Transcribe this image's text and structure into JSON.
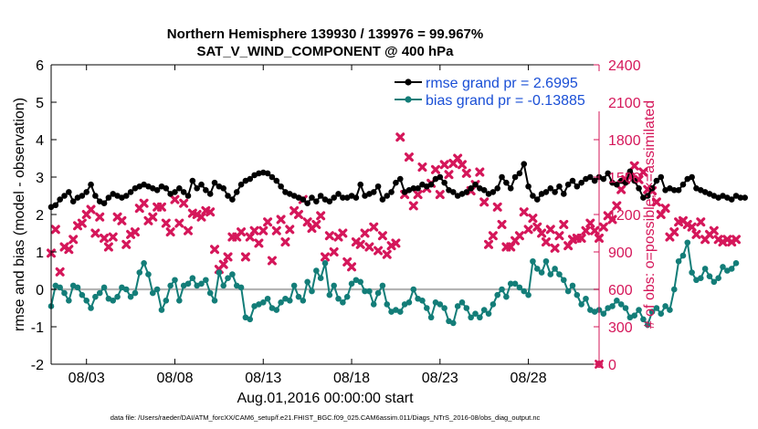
{
  "chart_data": {
    "type": "line",
    "title_line1": "Northern Hemisphere 139930 / 139976 = 99.967%",
    "title_line2": "SAT_V_WIND_COMPONENT @ 400 hPa",
    "xlabel": "Aug.01,2016 00:00:00 start",
    "ylabel_left": "rmse and bias (model - observation)",
    "ylabel_right": "# of obs: o=possible; ×=assimilated",
    "footnote": "data file: /Users/raeder/DAI/ATM_forcXX/CAM6_setup/f.e21.FHIST_BGC.f09_025.CAM6assim.011/Diags_NTrS_2016-08/obs_diag_output.nc",
    "x_start_day": 1.0,
    "x_step_days": 0.25,
    "xlim": [
      1.0,
      32.0
    ],
    "x_ticks": [
      3,
      8,
      13,
      18,
      23,
      28
    ],
    "x_tick_labels": [
      "08/03",
      "08/08",
      "08/13",
      "08/18",
      "08/23",
      "08/28"
    ],
    "ylim_left": [
      -2,
      6
    ],
    "y_ticks_left": [
      -2,
      -1,
      0,
      1,
      2,
      3,
      4,
      5,
      6
    ],
    "y_tick_labels_left": [
      "-2",
      "-1",
      "0",
      "1",
      "2",
      "3",
      "4",
      "5",
      "6"
    ],
    "ylim_right": [
      0,
      2400
    ],
    "y_ticks_right": [
      0,
      300,
      600,
      900,
      1200,
      1500,
      1800,
      2100,
      2400
    ],
    "y_tick_labels_right": [
      "0",
      "300",
      "600",
      "900",
      "1200",
      "1500",
      "1800",
      "2100",
      "2400"
    ],
    "zero_line": 0,
    "series": [
      {
        "name": "rmse grand pr = 2.6995",
        "color": "#000000",
        "axis": "left",
        "values": [
          2.2,
          2.25,
          2.4,
          2.5,
          2.6,
          2.35,
          2.45,
          2.5,
          2.6,
          2.8,
          2.5,
          2.35,
          2.3,
          2.45,
          2.55,
          2.5,
          2.45,
          2.5,
          2.6,
          2.7,
          2.75,
          2.8,
          2.75,
          2.7,
          2.65,
          2.75,
          2.7,
          2.55,
          2.6,
          2.7,
          2.6,
          2.5,
          2.9,
          2.7,
          2.8,
          2.65,
          2.55,
          2.85,
          2.75,
          2.7,
          2.5,
          2.4,
          2.6,
          2.8,
          2.9,
          2.95,
          3.05,
          3.1,
          3.12,
          3.1,
          3.0,
          2.9,
          2.75,
          2.6,
          2.55,
          2.5,
          2.45,
          2.4,
          2.3,
          2.45,
          2.35,
          2.5,
          2.4,
          2.35,
          2.45,
          2.55,
          2.45,
          2.45,
          2.5,
          2.45,
          2.8,
          2.5,
          2.55,
          2.6,
          2.75,
          2.4,
          2.5,
          2.6,
          2.85,
          2.95,
          2.6,
          2.65,
          2.7,
          2.7,
          2.8,
          2.75,
          2.8,
          2.95,
          3.0,
          2.85,
          2.65,
          2.6,
          2.5,
          2.55,
          2.6,
          2.7,
          2.8,
          2.7,
          2.65,
          2.55,
          2.6,
          2.7,
          3.0,
          2.85,
          2.7,
          3.0,
          3.1,
          3.35,
          2.75,
          2.5,
          2.4,
          2.55,
          2.6,
          2.7,
          2.6,
          2.75,
          2.55,
          2.8,
          2.9,
          2.75,
          2.85,
          2.95,
          3.0,
          2.9,
          3.0,
          2.95,
          3.1,
          2.85,
          2.8,
          2.9,
          2.85,
          3.15,
          2.9,
          2.7,
          2.45,
          2.5,
          2.7,
          2.9,
          3.0,
          2.65,
          2.7,
          2.65,
          2.65,
          2.8,
          2.95,
          3.0,
          2.7,
          2.65,
          2.6,
          2.55,
          2.5,
          2.45,
          2.5,
          2.45,
          2.4,
          2.5,
          2.45,
          2.45
        ]
      },
      {
        "name": "bias grand pr = -0.13885",
        "color": "#137d78",
        "axis": "left",
        "values": [
          -0.45,
          0.1,
          0.05,
          -0.1,
          -0.3,
          0.1,
          0.05,
          -0.15,
          -0.3,
          -0.5,
          -0.2,
          -0.1,
          0.05,
          -0.25,
          -0.3,
          -0.2,
          0.05,
          0.0,
          -0.2,
          -0.1,
          0.45,
          0.7,
          0.4,
          -0.1,
          0.0,
          -0.55,
          -0.3,
          0.1,
          0.25,
          -0.3,
          0.1,
          0.15,
          0.3,
          0.1,
          0.15,
          0.25,
          -0.1,
          -0.3,
          0.45,
          0.1,
          0.3,
          0.4,
          0.1,
          0.05,
          -0.75,
          -0.8,
          -0.45,
          -0.4,
          -0.35,
          -0.25,
          -0.5,
          -0.55,
          -0.35,
          -0.25,
          -0.3,
          0.1,
          -0.2,
          -0.3,
          0.2,
          -0.05,
          0.5,
          0.3,
          0.7,
          -0.15,
          0.1,
          -0.25,
          -0.35,
          -0.2,
          0.15,
          0.25,
          0.2,
          -0.05,
          -0.05,
          -0.4,
          -0.1,
          0.1,
          -0.4,
          -0.6,
          -0.55,
          -0.6,
          -0.4,
          -0.35,
          0.0,
          -0.25,
          -0.3,
          -0.5,
          -0.75,
          -0.35,
          -0.4,
          -0.5,
          -0.85,
          -0.9,
          -0.45,
          -0.35,
          -0.5,
          -0.75,
          -0.65,
          -0.75,
          -0.55,
          -0.65,
          -0.4,
          -0.15,
          0.0,
          -0.2,
          0.15,
          0.15,
          0.05,
          -0.05,
          -0.15,
          0.75,
          0.55,
          0.45,
          0.75,
          0.4,
          0.55,
          0.4,
          0.25,
          -0.05,
          0.1,
          -0.15,
          -0.4,
          -0.25,
          -0.55,
          -0.6,
          -0.55,
          -0.65,
          -0.5,
          -0.45,
          -0.3,
          -0.4,
          -0.5,
          -0.75,
          -0.7,
          -0.55,
          -0.8,
          -0.95,
          -0.6,
          -0.5,
          -0.65,
          -0.45,
          -0.55,
          0.0,
          0.75,
          0.9,
          1.25,
          0.45,
          0.25,
          0.3,
          0.55,
          0.35,
          0.2,
          0.3,
          0.6,
          0.5,
          0.55,
          0.7
        ]
      },
      {
        "name": "# obs assimilated",
        "color": "#d5175a",
        "axis": "right",
        "values": [
          890,
          1080,
          740,
          940,
          920,
          1000,
          1110,
          1130,
          1200,
          1240,
          1050,
          1180,
          1010,
          940,
          1020,
          1180,
          1150,
          960,
          1040,
          1060,
          1250,
          1290,
          1150,
          1180,
          1260,
          1260,
          1130,
          1060,
          1320,
          1130,
          1290,
          1070,
          1210,
          1200,
          1180,
          1230,
          1220,
          920,
          760,
          800,
          860,
          1020,
          1020,
          1060,
          860,
          1020,
          1070,
          970,
          1070,
          1140,
          830,
          1070,
          1160,
          980,
          1080,
          1230,
          1200,
          1320,
          1140,
          1090,
          1120,
          1190,
          860,
          1030,
          900,
          1020,
          1050,
          820,
          780,
          980,
          960,
          1050,
          940,
          1100,
          910,
          1030,
          880,
          950,
          970,
          1820,
          1360,
          1660,
          1270,
          1360,
          1580,
          1410,
          1450,
          1560,
          1360,
          1600,
          1520,
          1610,
          1650,
          1600,
          1530,
          1390,
          1440,
          1540,
          1300,
          960,
          1030,
          1260,
          1120,
          940,
          940,
          990,
          1030,
          1220,
          1080,
          1170,
          1100,
          1050,
          980,
          1080,
          930,
          1030,
          1120,
          950,
          1000,
          1010,
          1010,
          1070,
          1130,
          1070,
          1010,
          1100,
          1190,
          1160,
          1270,
          1400,
          1480,
          1500,
          1590,
          1480,
          1540,
          1400,
          1390,
          1300,
          1200,
          1250,
          1020,
          1060,
          1140,
          1150,
          1120,
          1100,
          1040,
          1140,
          1000,
          1040,
          1070,
          1000,
          980,
          1000,
          980,
          1000
        ]
      }
    ],
    "last_possible_value": 0,
    "legend_position": "top-right"
  }
}
